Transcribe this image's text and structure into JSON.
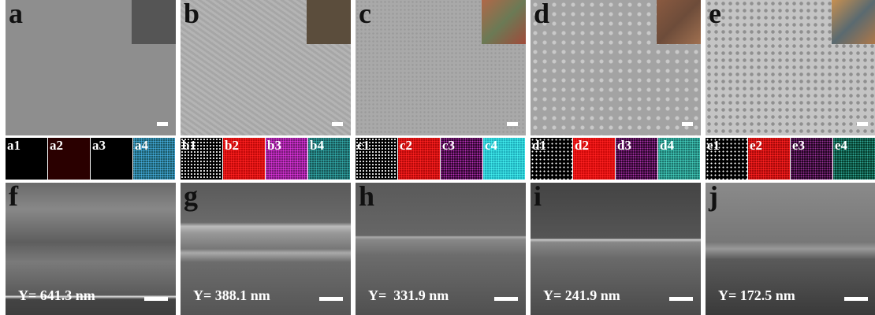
{
  "panels": [
    {
      "label": "a",
      "maps": [
        "a1",
        "a2",
        "a3",
        "a4"
      ]
    },
    {
      "label": "b",
      "maps": [
        "b1",
        "b2",
        "b3",
        "b4"
      ]
    },
    {
      "label": "c",
      "maps": [
        "c1",
        "c2",
        "c3",
        "c4"
      ]
    },
    {
      "label": "d",
      "maps": [
        "d1",
        "d2",
        "d3",
        "d4"
      ]
    },
    {
      "label": "e",
      "maps": [
        "e1",
        "e2",
        "e3",
        "e4"
      ]
    }
  ],
  "cross_sections": [
    {
      "label": "f",
      "thickness": "Y= 641.3 nm"
    },
    {
      "label": "g",
      "thickness": "Y= 388.1 nm"
    },
    {
      "label": "h",
      "thickness": "Y=  331.9 nm"
    },
    {
      "label": "i",
      "thickness": "Y= 241.9 nm"
    },
    {
      "label": "j",
      "thickness": "Y= 172.5 nm"
    }
  ]
}
